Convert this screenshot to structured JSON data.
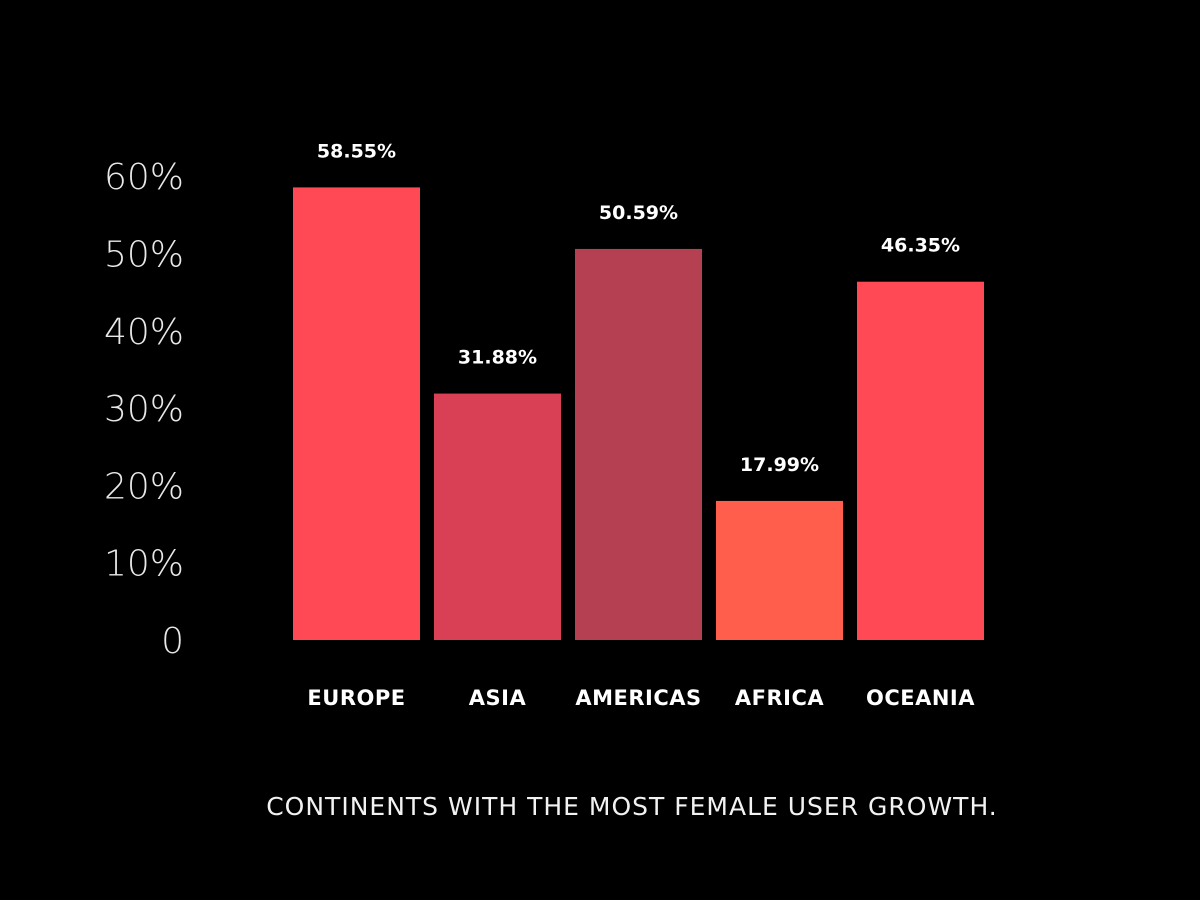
{
  "chart_data": {
    "type": "bar",
    "title": "CONTINENTS WITH THE MOST FEMALE USER GROWTH.",
    "xlabel": "",
    "ylabel": "",
    "ylim": [
      0,
      60
    ],
    "yticks": [
      0,
      10,
      20,
      30,
      40,
      50,
      60
    ],
    "ytick_labels": [
      "0",
      "10%",
      "20%",
      "30%",
      "40%",
      "50%",
      "60%"
    ],
    "categories": [
      "EUROPE",
      "ASIA",
      "AMERICAS",
      "AFRICA",
      "OCEANIA"
    ],
    "values": [
      58.55,
      31.88,
      50.59,
      17.99,
      46.35
    ],
    "value_labels": [
      "58.55%",
      "31.88%",
      "50.59%",
      "17.99%",
      "46.35%"
    ],
    "colors": [
      "#ff4a55",
      "#d93f55",
      "#b44052",
      "#ff5e4d",
      "#ff4a55"
    ],
    "grid": false,
    "legend": "none"
  }
}
